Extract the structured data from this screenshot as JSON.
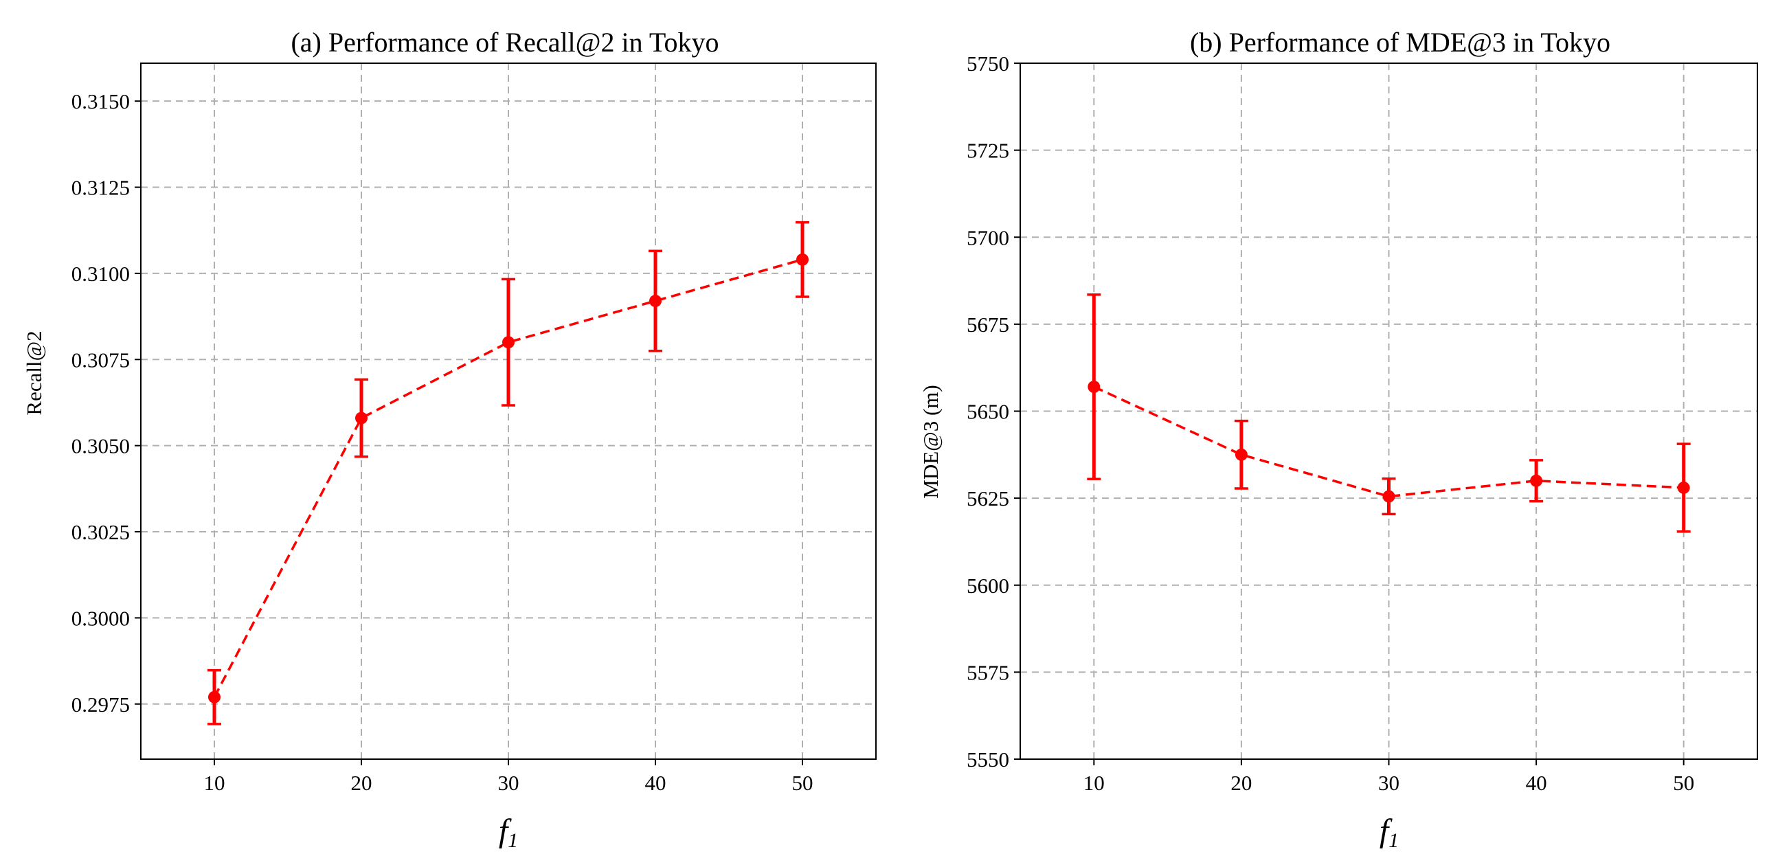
{
  "colors": {
    "series": "#ff0000",
    "grid": "#b0b0b0",
    "axis": "#000000"
  },
  "chart_data": [
    {
      "type": "line",
      "title": "(a) Performance of Recall@2 in Tokyo",
      "xlabel": "f",
      "xlabel_subscript": "1",
      "ylabel": "Recall@2",
      "x": [
        10,
        20,
        30,
        40,
        50
      ],
      "xticks": [
        10,
        20,
        30,
        40,
        50
      ],
      "xlim": [
        5,
        55
      ],
      "yticks": [
        0.2975,
        0.3,
        0.3025,
        0.305,
        0.3075,
        0.31,
        0.3125,
        0.315
      ],
      "ytick_labels": [
        "0.2975",
        "0.3000",
        "0.3025",
        "0.3050",
        "0.3075",
        "0.3100",
        "0.3125",
        "0.3150"
      ],
      "ylim": [
        0.2959,
        0.3161
      ],
      "grid": true,
      "series": [
        {
          "name": "Recall@2",
          "values": [
            0.2977,
            0.3058,
            0.308,
            0.3092,
            0.3104
          ],
          "errors": [
            0.00078,
            0.00112,
            0.00183,
            0.00145,
            0.00108
          ]
        }
      ]
    },
    {
      "type": "line",
      "title": "(b) Performance of MDE@3 in Tokyo",
      "xlabel": "f",
      "xlabel_subscript": "1",
      "ylabel": "MDE@3 (m)",
      "x": [
        10,
        20,
        30,
        40,
        50
      ],
      "xticks": [
        10,
        20,
        30,
        40,
        50
      ],
      "xlim": [
        5,
        55
      ],
      "yticks": [
        5550,
        5575,
        5600,
        5625,
        5650,
        5675,
        5700,
        5725,
        5750
      ],
      "ytick_labels": [
        "5550",
        "5575",
        "5600",
        "5625",
        "5650",
        "5675",
        "5700",
        "5725",
        "5750"
      ],
      "ylim": [
        5550,
        5750
      ],
      "grid": true,
      "series": [
        {
          "name": "MDE@3 (m)",
          "values": [
            5657,
            5637.5,
            5625.5,
            5630,
            5628
          ],
          "errors": [
            26.5,
            9.7,
            5.1,
            5.9,
            12.6
          ]
        }
      ]
    }
  ]
}
